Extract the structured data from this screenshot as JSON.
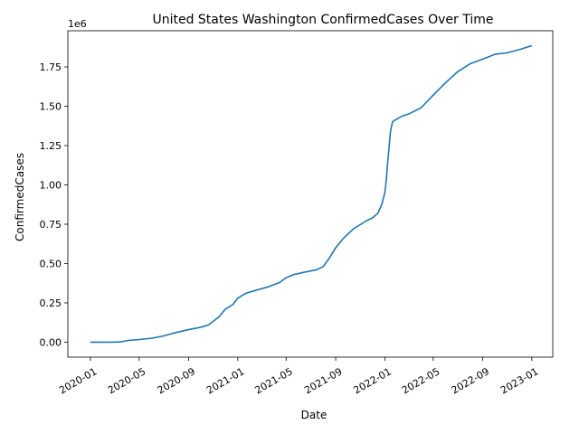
{
  "chart_data": {
    "type": "line",
    "title": "United States Washington ConfirmedCases Over Time",
    "xlabel": "Date",
    "ylabel": "ConfirmedCases",
    "y_offset_label": "1e6",
    "y_scale_factor": 1000000,
    "xlim": [
      "2019-11-06",
      "2023-02-22"
    ],
    "ylim": [
      -95000,
      1980000
    ],
    "grid": false,
    "legend": "none",
    "x_ticks": [
      {
        "date": "2020-01-01",
        "label": "2020-01"
      },
      {
        "date": "2020-05-01",
        "label": "2020-05"
      },
      {
        "date": "2020-09-01",
        "label": "2020-09"
      },
      {
        "date": "2021-01-01",
        "label": "2021-01"
      },
      {
        "date": "2021-05-01",
        "label": "2021-05"
      },
      {
        "date": "2021-09-01",
        "label": "2021-09"
      },
      {
        "date": "2022-01-01",
        "label": "2022-01"
      },
      {
        "date": "2022-05-01",
        "label": "2022-05"
      },
      {
        "date": "2022-09-01",
        "label": "2022-09"
      },
      {
        "date": "2023-01-01",
        "label": "2023-01"
      }
    ],
    "y_ticks": [
      {
        "value": 0,
        "label": "0.00"
      },
      {
        "value": 250000,
        "label": "0.25"
      },
      {
        "value": 500000,
        "label": "0.50"
      },
      {
        "value": 750000,
        "label": "0.75"
      },
      {
        "value": 1000000,
        "label": "1.00"
      },
      {
        "value": 1250000,
        "label": "1.25"
      },
      {
        "value": 1500000,
        "label": "1.50"
      },
      {
        "value": 1750000,
        "label": "1.75"
      }
    ],
    "series": [
      {
        "color": "#1f77b4",
        "x": [
          "2020-01-01",
          "2020-02-15",
          "2020-03-15",
          "2020-04-01",
          "2020-05-01",
          "2020-06-01",
          "2020-07-01",
          "2020-08-01",
          "2020-09-01",
          "2020-10-01",
          "2020-10-20",
          "2020-11-15",
          "2020-12-01",
          "2020-12-20",
          "2021-01-01",
          "2021-01-20",
          "2021-02-15",
          "2021-03-15",
          "2021-04-15",
          "2021-05-01",
          "2021-05-20",
          "2021-06-15",
          "2021-07-15",
          "2021-08-01",
          "2021-08-15",
          "2021-09-01",
          "2021-09-20",
          "2021-10-15",
          "2021-11-15",
          "2021-12-01",
          "2021-12-15",
          "2021-12-25",
          "2022-01-01",
          "2022-01-05",
          "2022-01-08",
          "2022-01-12",
          "2022-01-15",
          "2022-01-20",
          "2022-01-25",
          "2022-02-01",
          "2022-02-15",
          "2022-03-01",
          "2022-04-01",
          "2022-05-01",
          "2022-06-01",
          "2022-07-01",
          "2022-08-01",
          "2022-09-01",
          "2022-10-01",
          "2022-11-01",
          "2022-12-01",
          "2023-01-01"
        ],
        "y": [
          0,
          500,
          1500,
          10000,
          17000,
          25000,
          40000,
          62000,
          80000,
          95000,
          110000,
          160000,
          210000,
          240000,
          280000,
          310000,
          330000,
          350000,
          380000,
          410000,
          430000,
          445000,
          460000,
          480000,
          530000,
          600000,
          660000,
          720000,
          770000,
          790000,
          820000,
          880000,
          950000,
          1040000,
          1140000,
          1250000,
          1340000,
          1400000,
          1410000,
          1420000,
          1440000,
          1450000,
          1490000,
          1570000,
          1650000,
          1720000,
          1770000,
          1800000,
          1830000,
          1840000,
          1860000,
          1885000
        ]
      }
    ]
  }
}
